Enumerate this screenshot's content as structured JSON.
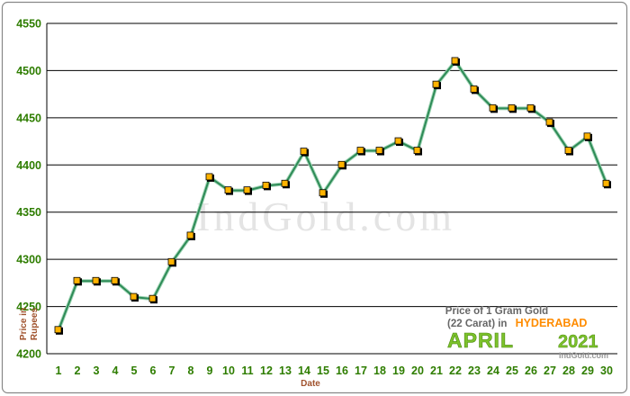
{
  "chart_data": {
    "type": "line",
    "watermark": "IndGold.com",
    "xlabel": "Date",
    "ylabel": "Price in Rupees",
    "ylim": [
      4200,
      4550
    ],
    "yticks": [
      4200,
      4250,
      4300,
      4350,
      4400,
      4450,
      4500,
      4550
    ],
    "grid": "horizontal",
    "x": [
      1,
      2,
      3,
      4,
      5,
      6,
      7,
      8,
      9,
      10,
      11,
      12,
      13,
      14,
      15,
      16,
      17,
      18,
      19,
      20,
      21,
      22,
      23,
      24,
      25,
      26,
      27,
      28,
      29,
      30
    ],
    "series": [
      {
        "values": [
          4225,
          4277,
          4277,
          4277,
          4260,
          4258,
          4297,
          4325,
          4387,
          4373,
          4373,
          4378,
          4380,
          4414,
          4370,
          4400,
          4415,
          4415,
          4425,
          4415,
          4485,
          4510,
          4480,
          4460,
          4460,
          4460,
          4445,
          4415,
          4430,
          4380
        ]
      }
    ],
    "caption": {
      "line1": "Price of 1 Gram Gold",
      "line2_prefix": "(22 Carat) in",
      "city": "HYDERABAD",
      "month": "APRIL",
      "year": "2021",
      "site": "IndGold.com"
    },
    "colors": {
      "line": "#2e8b57",
      "line_outer": "#9ed4b4",
      "marker_fill": "#ffb300",
      "marker_stroke": "#000000",
      "grid": "#000000",
      "tick_labels": "#2e7d00",
      "axis_titles": "#a0522d",
      "frame": "#888888"
    }
  }
}
